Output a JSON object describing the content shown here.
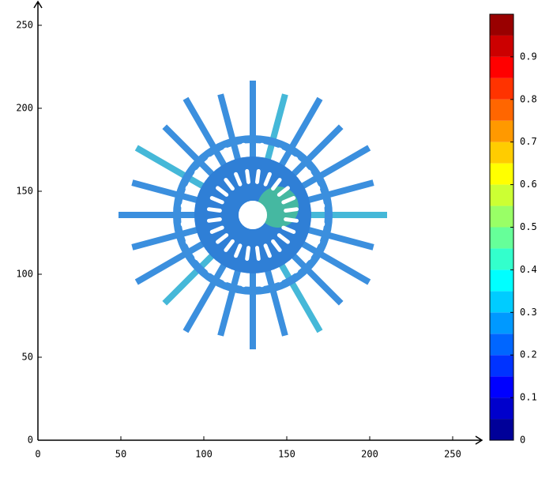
{
  "chart_data": {
    "type": "image",
    "xlim": [
      0,
      268
    ],
    "xticks": [
      0,
      50,
      100,
      150,
      200,
      250
    ],
    "ylim": [
      0,
      265
    ],
    "yticks": [
      0,
      50,
      100,
      150,
      200,
      250
    ],
    "colorbar": {
      "lim": [
        0,
        1
      ],
      "ticks": [
        0,
        0.1,
        0.2,
        0.3,
        0.4,
        0.5,
        0.6,
        0.7,
        0.8,
        0.9
      ],
      "colormap": "jet",
      "levels": 20
    }
  }
}
